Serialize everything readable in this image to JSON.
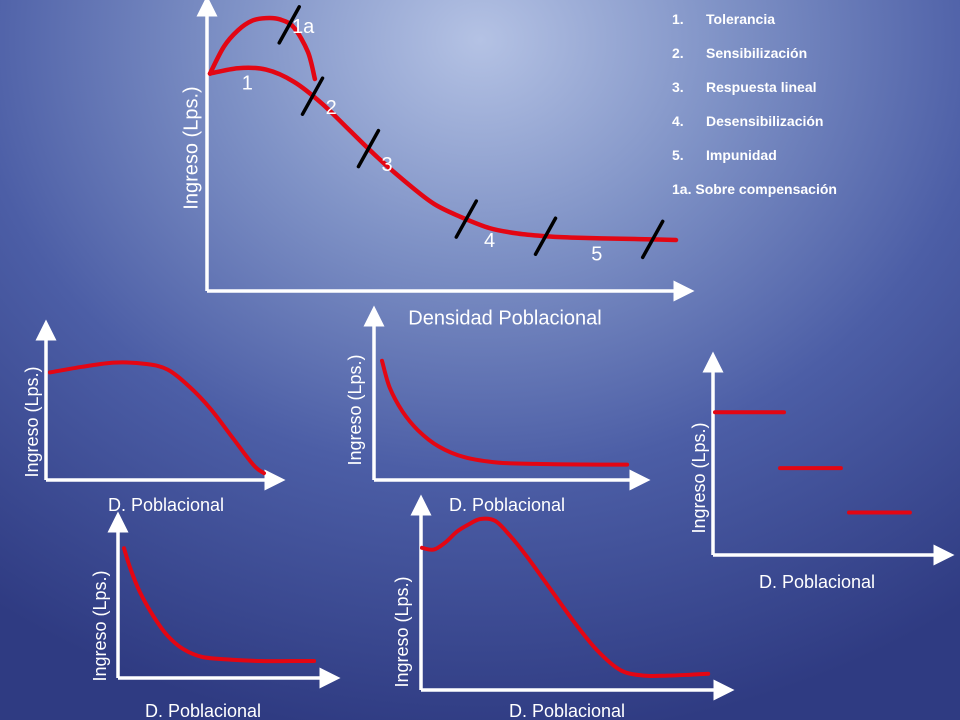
{
  "colors": {
    "curve": "#e30613",
    "axis": "#ffffff",
    "marker": "#000000",
    "text": "#ffffff"
  },
  "legend": {
    "items": [
      {
        "num": "1.",
        "label": "Tolerancia"
      },
      {
        "num": "2.",
        "label": "Sensibilización"
      },
      {
        "num": "3.",
        "label": "Respuesta lineal"
      },
      {
        "num": "4.",
        "label": "Desensibilización"
      },
      {
        "num": "5.",
        "label": "Impunidad"
      },
      {
        "num": "",
        "label": "1a. Sobre compensación"
      }
    ]
  },
  "chart_data": [
    {
      "id": "main",
      "type": "line",
      "title": "",
      "xlabel": "Densidad Poblacional",
      "ylabel": "Ingreso (Lps.)",
      "xlim": [
        0,
        100
      ],
      "ylim": [
        0,
        100
      ],
      "grid": false,
      "series": [
        {
          "x": [
            0,
            6,
            12,
            18,
            24,
            30,
            36,
            42,
            48,
            54,
            60,
            66,
            72,
            78,
            84,
            90,
            96,
            100
          ],
          "y": [
            78,
            80,
            79.5,
            75,
            67,
            57,
            47,
            38,
            30,
            25,
            21,
            19,
            18,
            17.5,
            17.2,
            17,
            16.8,
            16.6
          ]
        },
        {
          "x": [
            0,
            3,
            6,
            9,
            12,
            15,
            18,
            21,
            22.5
          ],
          "y": [
            78,
            88,
            94,
            97.5,
            98.5,
            98,
            95,
            86,
            76
          ]
        }
      ],
      "dividers": [
        17,
        22,
        34,
        55,
        72,
        95
      ],
      "annotations": [
        {
          "text": "1a",
          "x": 20,
          "y": 95
        },
        {
          "text": "1",
          "x": 8,
          "y": 74
        },
        {
          "text": "2",
          "x": 26,
          "y": 65
        },
        {
          "text": "3",
          "x": 38,
          "y": 44
        },
        {
          "text": "4",
          "x": 60,
          "y": 16
        },
        {
          "text": "5",
          "x": 83,
          "y": 11
        }
      ]
    },
    {
      "id": "tolerancia",
      "type": "line",
      "title": "",
      "xlabel": "D. Poblacional",
      "ylabel": "Ingreso (Lps.)",
      "xlim": [
        0,
        100
      ],
      "ylim": [
        0,
        100
      ],
      "grid": false,
      "series": [
        {
          "x": [
            0,
            15,
            30,
            45,
            55,
            65,
            75,
            85,
            95,
            100
          ],
          "y": [
            74,
            78,
            81,
            80,
            76,
            64,
            48,
            28,
            8,
            2
          ]
        }
      ]
    },
    {
      "id": "sensibilizacion",
      "type": "line",
      "title": "",
      "xlabel": "D. Poblacional",
      "ylabel": "Ingreso (Lps.)",
      "xlim": [
        0,
        100
      ],
      "ylim": [
        0,
        100
      ],
      "grid": false,
      "series": [
        {
          "x": [
            0,
            3,
            8,
            14,
            22,
            32,
            45,
            60,
            78,
            95
          ],
          "y": [
            86,
            66,
            48,
            34,
            22,
            14,
            10,
            9,
            8.6,
            8.5
          ]
        }
      ]
    },
    {
      "id": "respuesta-lineal",
      "type": "line",
      "title": "",
      "xlabel": "D. Poblacional",
      "ylabel": "Ingreso (Lps.)",
      "xlim": [
        0,
        100
      ],
      "ylim": [
        0,
        100
      ],
      "grid": false,
      "series": [
        {
          "x": [
            0,
            3,
            8,
            15,
            22,
            30,
            40,
            55,
            70,
            85,
            97
          ],
          "y": [
            94,
            80,
            62,
            44,
            30,
            20,
            14,
            12,
            11,
            11,
            11
          ]
        }
      ]
    },
    {
      "id": "desensibilizacion",
      "type": "line",
      "title": "",
      "xlabel": "D. Poblacional",
      "ylabel": "Ingreso (Lps.)",
      "xlim": [
        0,
        100
      ],
      "ylim": [
        0,
        100
      ],
      "grid": false,
      "series": [
        {
          "x": [
            0,
            4,
            8,
            12,
            16,
            20,
            25,
            30,
            36,
            44,
            52,
            60,
            68,
            76,
            84,
            92,
            98
          ],
          "y": [
            79,
            78,
            82,
            88,
            92,
            95,
            94,
            86,
            74,
            56,
            38,
            22,
            11,
            8,
            8,
            8.5,
            9
          ]
        }
      ]
    },
    {
      "id": "impunidad",
      "type": "line",
      "title": "",
      "xlabel": "D. Poblacional",
      "ylabel": "Ingreso (Lps.)",
      "xlim": [
        0,
        100
      ],
      "ylim": [
        0,
        100
      ],
      "grid": false,
      "series": [
        {
          "x": [
            0,
            34
          ],
          "y": [
            74,
            74
          ]
        },
        {
          "x": [
            32,
            62
          ],
          "y": [
            45,
            45
          ]
        },
        {
          "x": [
            66,
            96
          ],
          "y": [
            22,
            22
          ]
        }
      ]
    }
  ]
}
